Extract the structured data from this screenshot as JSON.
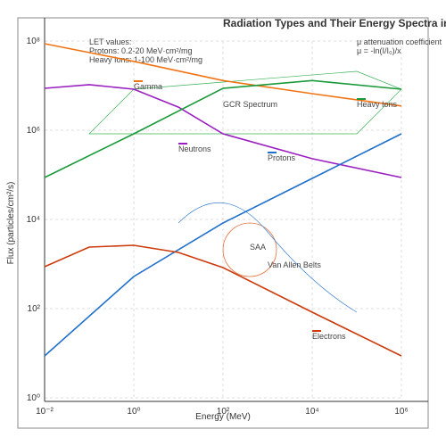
{
  "chart_data": {
    "type": "line",
    "title": "Radiation Types and Their Energy Spectra in",
    "x_label": "Energy (MeV)",
    "y_label": "Flux (particles/cm²/s)",
    "log_x": true,
    "log_y": true,
    "grid": true,
    "xlim": [
      0.01,
      1000000
    ],
    "xticks": [
      {
        "value": 0.01,
        "label": "10⁻²"
      },
      {
        "value": 1,
        "label": "10⁰"
      },
      {
        "value": 100,
        "label": "10²"
      },
      {
        "value": 10000,
        "label": "10⁴"
      },
      {
        "value": 1000000,
        "label": "10⁶"
      }
    ],
    "ylim": [
      1,
      100000000
    ],
    "yticks": [
      {
        "value": 1,
        "label": "10⁰"
      },
      {
        "value": 100,
        "label": "10²"
      },
      {
        "value": 10000,
        "label": "10⁴"
      },
      {
        "value": 1000000,
        "label": "10⁶"
      },
      {
        "value": 100000000,
        "label": "10⁸"
      }
    ],
    "series": [
      {
        "name": "Gamma",
        "color": "#f07414",
        "x": [
          0.01,
          1,
          100,
          10000,
          1000000
        ],
        "values": [
          87000000,
          35000000,
          13000000,
          6600000,
          3500000
        ]
      },
      {
        "name": "Neutrons",
        "color": "#9b1fc0",
        "x": [
          0.01,
          0.1,
          1,
          10,
          100,
          10000,
          1000000
        ],
        "values": [
          8700000,
          10500000,
          8300000,
          3300000,
          830000,
          230000,
          87000
        ]
      },
      {
        "name": "Heavy Ions",
        "color": "#1a9a3a",
        "x": [
          0.01,
          1,
          100,
          10000,
          1000000
        ],
        "values": [
          87000,
          830000,
          8700000,
          13000000,
          8300000
        ]
      },
      {
        "name": "Protons",
        "color": "#1f6fcc",
        "x": [
          0.01,
          1,
          100,
          10000,
          1000000
        ],
        "values": [
          8.7,
          525,
          8300,
          83000,
          830000
        ]
      },
      {
        "name": "Electrons",
        "color": "#cc3a0a",
        "x": [
          0.01,
          0.1,
          1,
          10,
          100,
          10000,
          1000000
        ],
        "values": [
          870,
          2400,
          2630,
          1820,
          830,
          83,
          8.7
        ]
      }
    ],
    "annotations": {
      "let": [
        "LET values:",
        "Protons: 0.2-20 MeV·cm²/mg",
        "Heavy Ions: 1-100 MeV·cm²/mg"
      ],
      "mu": [
        "μ attenuation coefficient",
        "μ = -ln(I/I₀)/x"
      ],
      "gcr": "GCR Spectrum",
      "saa": "SAA",
      "van_allen": "Van Allen Belts"
    }
  }
}
